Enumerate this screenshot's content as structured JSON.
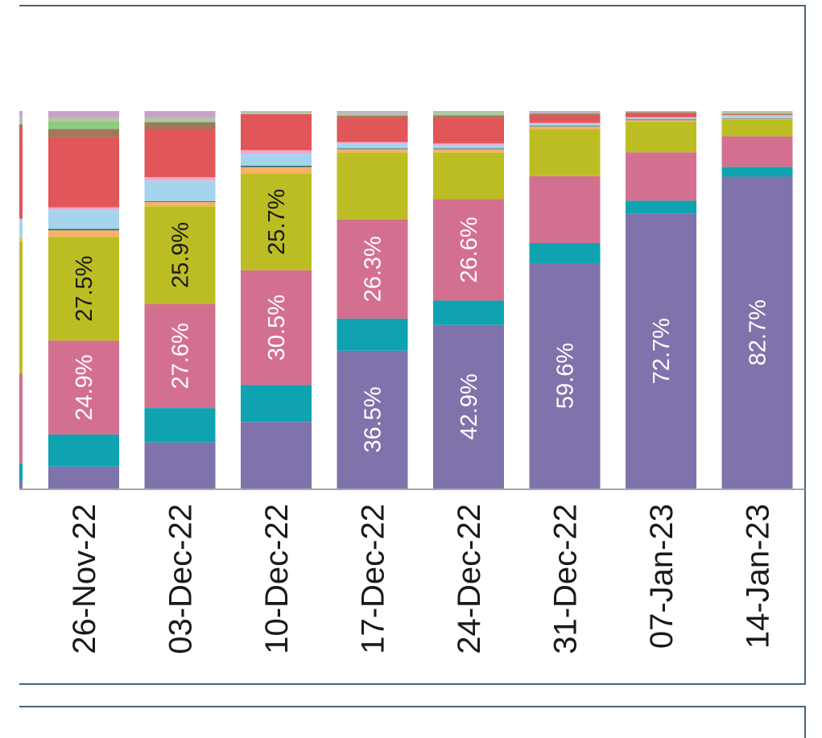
{
  "chart_data": {
    "type": "bar",
    "stacked": true,
    "normalized": true,
    "categories": [
      "26-Nov-22",
      "03-Dec-22",
      "10-Dec-22",
      "17-Dec-22",
      "24-Dec-22",
      "31-Dec-22",
      "07-Jan-23",
      "14-Jan-23"
    ],
    "ylim": [
      0,
      100
    ],
    "series": [
      {
        "color": "#8073ac",
        "values": [
          5.8,
          12.2,
          17.7,
          36.5,
          42.9,
          59.6,
          72.7,
          82.7
        ]
      },
      {
        "color": "#0fa3b1",
        "values": [
          8.5,
          9.1,
          9.8,
          8.5,
          6.4,
          5.3,
          3.4,
          2.6
        ]
      },
      {
        "color": "#d4708f",
        "values": [
          24.9,
          27.6,
          30.5,
          26.3,
          26.6,
          17.7,
          12.8,
          8.1
        ]
      },
      {
        "color": "#bcbd22",
        "values": [
          27.5,
          25.9,
          25.7,
          17.7,
          12.2,
          12.4,
          8.1,
          4.5
        ]
      },
      {
        "color": "#f7b267",
        "values": [
          1.7,
          1.1,
          1.7,
          0.9,
          0.9,
          0.7,
          0.4,
          0.2
        ]
      },
      {
        "color": "#2e6f6e",
        "values": [
          0.4,
          0.2,
          0.4,
          0.2,
          0.2,
          0.2,
          0.2,
          0.1
        ]
      },
      {
        "color": "#a6d4ee",
        "values": [
          5.1,
          5.5,
          3.2,
          1.3,
          0.9,
          0.6,
          0.4,
          0.6
        ]
      },
      {
        "color": "#f4a6c8",
        "values": [
          0.6,
          0.9,
          0.9,
          0.4,
          0.4,
          0.2,
          0.2,
          0.2
        ]
      },
      {
        "color": "#e05659",
        "values": [
          18.6,
          12.8,
          9.6,
          6.4,
          6.8,
          2.1,
          1.1,
          0.2
        ]
      },
      {
        "color": "#a0785a",
        "values": [
          2.1,
          1.7,
          0.0,
          0.6,
          0.6,
          0.4,
          0.2,
          0.2
        ]
      },
      {
        "color": "#8dcb80",
        "values": [
          2.1,
          0.4,
          0.0,
          0.0,
          0.2,
          0.0,
          0.0,
          0.2
        ]
      },
      {
        "color": "#b5c5a8",
        "values": [
          1.0,
          0.8,
          0.8,
          0.8,
          0.8,
          0.2,
          0.2,
          0.5
        ]
      },
      {
        "color": "#c7a3c8",
        "values": [
          1.7,
          1.8,
          0.0,
          0.4,
          0.1,
          0.4,
          0.1,
          0.0
        ]
      }
    ],
    "data_labels": [
      {
        "category_index": 0,
        "series_index": 2,
        "text": "24.9%",
        "color": "#ffffff"
      },
      {
        "category_index": 0,
        "series_index": 3,
        "text": "27.5%",
        "color": "#1a1a1a"
      },
      {
        "category_index": 1,
        "series_index": 2,
        "text": "27.6%",
        "color": "#ffffff"
      },
      {
        "category_index": 1,
        "series_index": 3,
        "text": "25.9%",
        "color": "#1a1a1a"
      },
      {
        "category_index": 2,
        "series_index": 2,
        "text": "30.5%",
        "color": "#ffffff"
      },
      {
        "category_index": 2,
        "series_index": 3,
        "text": "25.7%",
        "color": "#1a1a1a"
      },
      {
        "category_index": 3,
        "series_index": 0,
        "text": "36.5%",
        "color": "#ffffff"
      },
      {
        "category_index": 3,
        "series_index": 2,
        "text": "26.3%",
        "color": "#ffffff"
      },
      {
        "category_index": 4,
        "series_index": 0,
        "text": "42.9%",
        "color": "#ffffff"
      },
      {
        "category_index": 4,
        "series_index": 2,
        "text": "26.6%",
        "color": "#ffffff"
      },
      {
        "category_index": 5,
        "series_index": 0,
        "text": "59.6%",
        "color": "#ffffff"
      },
      {
        "category_index": 6,
        "series_index": 0,
        "text": "72.7%",
        "color": "#ffffff"
      },
      {
        "category_index": 7,
        "series_index": 0,
        "text": "82.7%",
        "color": "#ffffff"
      }
    ],
    "partial_left_bar": {
      "series_values": [
        2.0,
        4.5,
        24.0,
        35.0,
        1.0,
        0.0,
        5.0,
        0.0,
        24.0,
        1.0,
        0.0,
        2.0,
        1.5
      ]
    },
    "title": "",
    "xlabel": "",
    "ylabel": "",
    "grid": false,
    "legend": "none",
    "x_tick_rotation": -90
  }
}
